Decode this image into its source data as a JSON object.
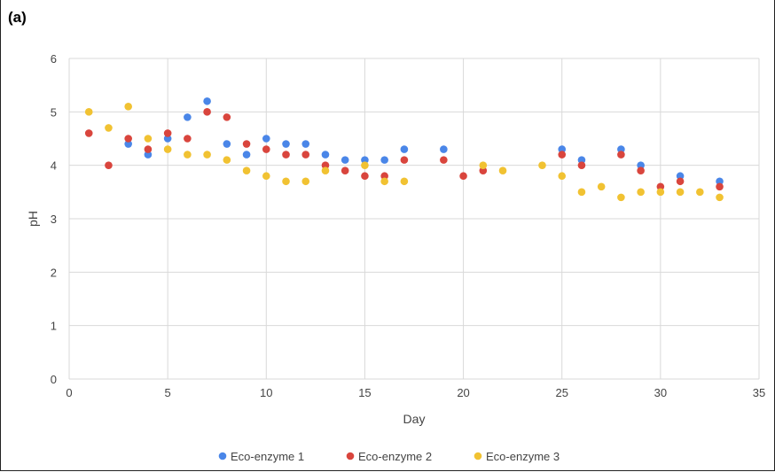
{
  "panel_label": "(a)",
  "chart_data": {
    "type": "scatter",
    "title": "",
    "xlabel": "Day",
    "ylabel": "pH",
    "xlim": [
      0,
      35
    ],
    "ylim": [
      0,
      6
    ],
    "xticks": [
      0,
      5,
      10,
      15,
      20,
      25,
      30,
      35
    ],
    "yticks": [
      0,
      1,
      2,
      3,
      4,
      5,
      6
    ],
    "grid": true,
    "legend_position": "bottom",
    "series": [
      {
        "name": "Eco-enzyme 1",
        "color": "#4a86e8",
        "points": [
          [
            3,
            4.4
          ],
          [
            4,
            4.2
          ],
          [
            5,
            4.5
          ],
          [
            6,
            4.9
          ],
          [
            7,
            5.2
          ],
          [
            8,
            4.4
          ],
          [
            9,
            4.2
          ],
          [
            10,
            4.5
          ],
          [
            11,
            4.4
          ],
          [
            12,
            4.4
          ],
          [
            13,
            4.2
          ],
          [
            14,
            4.1
          ],
          [
            15,
            4.1
          ],
          [
            16,
            4.1
          ],
          [
            17,
            4.3
          ],
          [
            19,
            4.3
          ],
          [
            25,
            4.3
          ],
          [
            26,
            4.1
          ],
          [
            28,
            4.3
          ],
          [
            29,
            4.0
          ],
          [
            31,
            3.8
          ],
          [
            33,
            3.7
          ]
        ]
      },
      {
        "name": "Eco-enzyme 2",
        "color": "#d9453d",
        "points": [
          [
            1,
            4.6
          ],
          [
            2,
            4.0
          ],
          [
            3,
            4.5
          ],
          [
            4,
            4.3
          ],
          [
            5,
            4.6
          ],
          [
            6,
            4.5
          ],
          [
            7,
            5.0
          ],
          [
            8,
            4.9
          ],
          [
            9,
            4.4
          ],
          [
            10,
            4.3
          ],
          [
            11,
            4.2
          ],
          [
            12,
            4.2
          ],
          [
            13,
            4.0
          ],
          [
            14,
            3.9
          ],
          [
            15,
            3.8
          ],
          [
            16,
            3.8
          ],
          [
            17,
            4.1
          ],
          [
            19,
            4.1
          ],
          [
            20,
            3.8
          ],
          [
            21,
            3.9
          ],
          [
            25,
            4.2
          ],
          [
            26,
            4.0
          ],
          [
            28,
            4.2
          ],
          [
            29,
            3.9
          ],
          [
            30,
            3.6
          ],
          [
            31,
            3.7
          ],
          [
            33,
            3.6
          ]
        ]
      },
      {
        "name": "Eco-enzyme 3",
        "color": "#f1c232",
        "points": [
          [
            1,
            5.0
          ],
          [
            2,
            4.7
          ],
          [
            3,
            5.1
          ],
          [
            4,
            4.5
          ],
          [
            5,
            4.3
          ],
          [
            6,
            4.2
          ],
          [
            7,
            4.2
          ],
          [
            8,
            4.1
          ],
          [
            9,
            3.9
          ],
          [
            10,
            3.8
          ],
          [
            11,
            3.7
          ],
          [
            12,
            3.7
          ],
          [
            13,
            3.9
          ],
          [
            15,
            4.0
          ],
          [
            16,
            3.7
          ],
          [
            17,
            3.7
          ],
          [
            21,
            4.0
          ],
          [
            22,
            3.9
          ],
          [
            24,
            4.0
          ],
          [
            25,
            3.8
          ],
          [
            26,
            3.5
          ],
          [
            27,
            3.6
          ],
          [
            28,
            3.4
          ],
          [
            29,
            3.5
          ],
          [
            30,
            3.5
          ],
          [
            31,
            3.5
          ],
          [
            32,
            3.5
          ],
          [
            33,
            3.4
          ]
        ]
      }
    ]
  }
}
